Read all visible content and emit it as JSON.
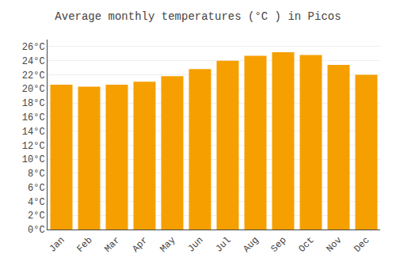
{
  "chart_data": {
    "type": "bar",
    "title": "Average monthly temperatures (°C ) in Picos",
    "categories": [
      "Jan",
      "Feb",
      "Mar",
      "Apr",
      "May",
      "Jun",
      "Jul",
      "Aug",
      "Sep",
      "Oct",
      "Nov",
      "Dec"
    ],
    "values": [
      20.6,
      20.3,
      20.6,
      21.0,
      21.8,
      22.8,
      24.0,
      24.7,
      25.2,
      24.8,
      23.4,
      22.0
    ],
    "color": "#F5A000",
    "ylim": [
      0,
      27
    ],
    "yticks": [
      {
        "value": 0,
        "label": "0°C"
      },
      {
        "value": 2,
        "label": "2°C"
      },
      {
        "value": 4,
        "label": "4°C"
      },
      {
        "value": 6,
        "label": "6°C"
      },
      {
        "value": 8,
        "label": "8°C"
      },
      {
        "value": 10,
        "label": "10°C"
      },
      {
        "value": 12,
        "label": "12°C"
      },
      {
        "value": 14,
        "label": "14°C"
      },
      {
        "value": 16,
        "label": "16°C"
      },
      {
        "value": 18,
        "label": "18°C"
      },
      {
        "value": 20,
        "label": "20°C"
      },
      {
        "value": 22,
        "label": "22°C"
      },
      {
        "value": 24,
        "label": "24°C"
      },
      {
        "value": 26,
        "label": "26°C"
      }
    ],
    "grid": true
  }
}
